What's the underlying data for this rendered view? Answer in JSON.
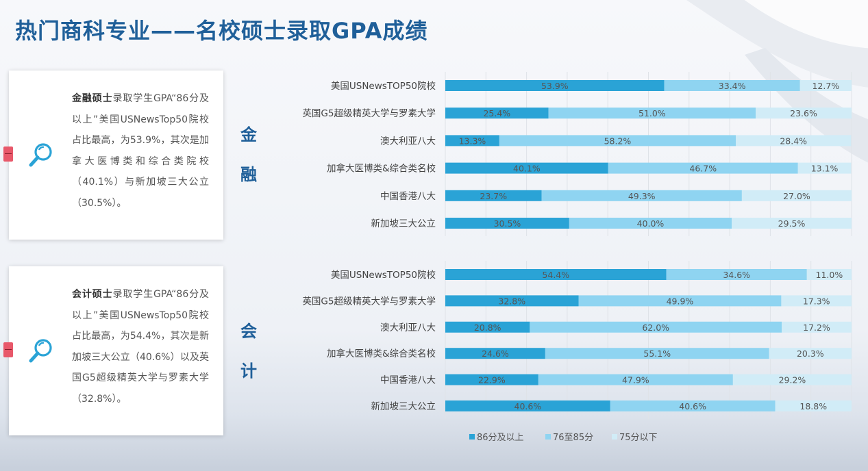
{
  "title": "热门商科专业——名校硕士录取GPA成绩",
  "cards": [
    {
      "heading": "金融硕士",
      "text": "录取学生GPA“86分及以上”美国USNewsTop50院校占比最高，为53.9%，其次是加拿大医博类和综合类院校（40.1%）与新加坡三大公立（30.5%）。"
    },
    {
      "heading": "会计硕士",
      "text": "录取学生GPA“86分及以上”美国USNewsTop50院校占比最高，为54.4%，其次是新加坡三大公立（40.6%）以及英国G5超级精英大学与罗素大学（32.8%）。"
    }
  ],
  "section_labels": [
    {
      "chars": [
        "金",
        "融"
      ]
    },
    {
      "chars": [
        "会",
        "计"
      ]
    }
  ],
  "colors": {
    "title": "#1f5f99",
    "high": "#2aa3d6",
    "mid": "#8fd4f1",
    "low": "#d1ecf7",
    "marker": "#e8586a"
  },
  "icons": [
    "magnifier-icon",
    "magnifier-icon"
  ],
  "chart_data": [
    {
      "type": "bar",
      "stacked": true,
      "orientation": "horizontal",
      "title": "",
      "xlim": [
        0,
        100
      ],
      "categories": [
        "美国USNewsTOP50院校",
        "英国G5超级精英大学与罗素大学",
        "澳大利亚八大",
        "加拿大医博类&综合类名校",
        "中国香港八大",
        "新加坡三大公立"
      ],
      "series": [
        {
          "name": "86分及以上",
          "values": [
            53.9,
            25.4,
            13.3,
            40.1,
            23.7,
            30.5
          ]
        },
        {
          "name": "76至85分",
          "values": [
            33.4,
            51.0,
            58.2,
            46.7,
            49.3,
            40.0
          ]
        },
        {
          "name": "75分以下",
          "values": [
            12.7,
            23.6,
            28.4,
            13.1,
            27.0,
            29.5
          ]
        }
      ]
    },
    {
      "type": "bar",
      "stacked": true,
      "orientation": "horizontal",
      "title": "",
      "xlim": [
        0,
        100
      ],
      "categories": [
        "美国USNewsTOP50院校",
        "英国G5超级精英大学与罗素大学",
        "澳大利亚八大",
        "加拿大医博类&综合类名校",
        "中国香港八大",
        "新加坡三大公立"
      ],
      "series": [
        {
          "name": "86分及以上",
          "values": [
            54.4,
            32.8,
            20.8,
            24.6,
            22.9,
            40.6
          ]
        },
        {
          "name": "76至85分",
          "values": [
            34.6,
            49.9,
            62.0,
            55.1,
            47.9,
            40.6
          ]
        },
        {
          "name": "75分以下",
          "values": [
            11.0,
            17.3,
            17.2,
            20.3,
            29.2,
            18.8
          ]
        }
      ]
    }
  ],
  "legend": {
    "position": "bottom",
    "items": [
      "86分及以上",
      "76至85分",
      "75分以下"
    ]
  }
}
